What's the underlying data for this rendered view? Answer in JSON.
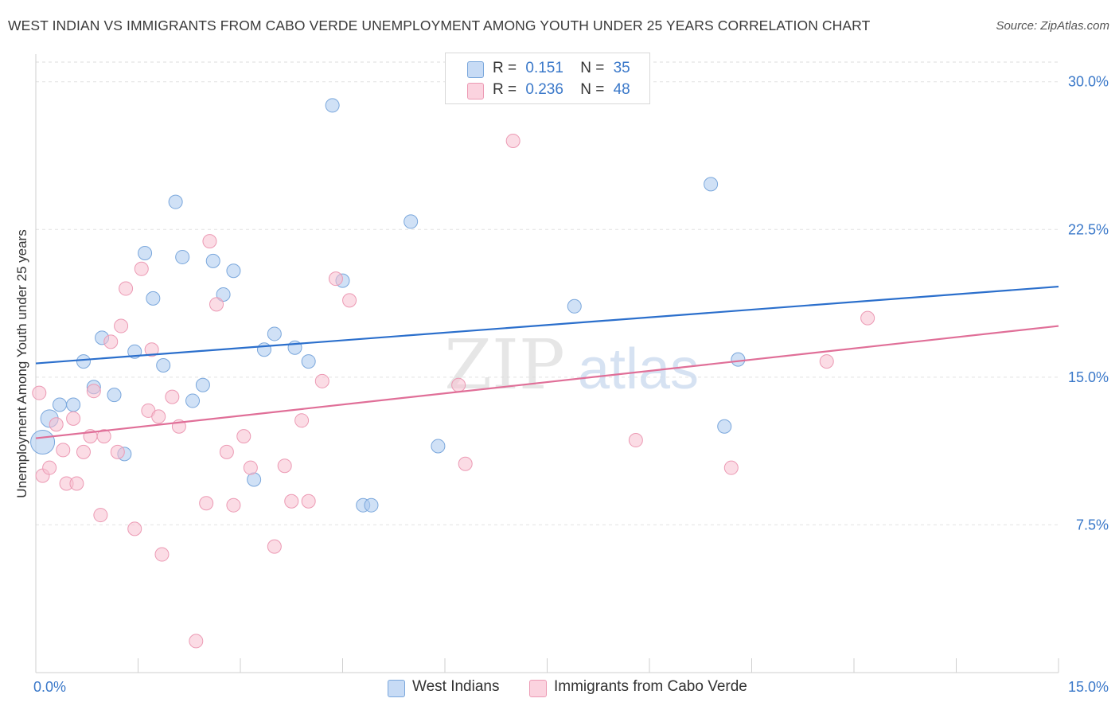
{
  "title": "WEST INDIAN VS IMMIGRANTS FROM CABO VERDE UNEMPLOYMENT AMONG YOUTH UNDER 25 YEARS CORRELATION CHART",
  "source": "Source: ZipAtlas.com",
  "watermark": {
    "zip": "ZIP",
    "atlas": "atlas"
  },
  "legend_top": [
    {
      "r_label": "R =",
      "r_value": "0.151",
      "n_label": "N =",
      "n_value": "35"
    },
    {
      "r_label": "R =",
      "r_value": "0.236",
      "n_label": "N =",
      "n_value": "48"
    }
  ],
  "chart_data": {
    "type": "scatter",
    "title": "WEST INDIAN VS IMMIGRANTS FROM CABO VERDE UNEMPLOYMENT AMONG YOUTH UNDER 25 YEARS CORRELATION CHART",
    "xlabel": "",
    "ylabel": "Unemployment Among Youth under 25 years",
    "xlim": [
      0,
      15
    ],
    "ylim": [
      0,
      31
    ],
    "x_tick_labels": [
      "0.0%",
      "15.0%"
    ],
    "y_ticks": [
      7.5,
      15,
      22.5,
      30
    ],
    "y_tick_labels": [
      "7.5%",
      "15.0%",
      "22.5%",
      "30.0%"
    ],
    "grid": "horizontal dashed",
    "legend_position": "bottom",
    "series": [
      {
        "name": "West Indians",
        "color": "#a9c8ee",
        "stroke": "#7aa7dc",
        "trend_color": "#2b6fcc",
        "r": 0.151,
        "n": 35,
        "trend": {
          "x": [
            0,
            15
          ],
          "y": [
            15.7,
            19.6
          ]
        },
        "points": [
          [
            0.1,
            11.7
          ],
          [
            0.2,
            12.9
          ],
          [
            0.35,
            13.6
          ],
          [
            0.55,
            13.6
          ],
          [
            0.7,
            15.8
          ],
          [
            0.85,
            14.5
          ],
          [
            0.97,
            17.0
          ],
          [
            1.15,
            14.1
          ],
          [
            1.3,
            11.1
          ],
          [
            1.45,
            16.3
          ],
          [
            1.6,
            21.3
          ],
          [
            1.72,
            19.0
          ],
          [
            1.87,
            15.6
          ],
          [
            2.05,
            23.9
          ],
          [
            2.15,
            21.1
          ],
          [
            2.3,
            13.8
          ],
          [
            2.45,
            14.6
          ],
          [
            2.6,
            20.9
          ],
          [
            2.75,
            19.2
          ],
          [
            2.9,
            20.4
          ],
          [
            3.2,
            9.8
          ],
          [
            3.35,
            16.4
          ],
          [
            3.5,
            17.2
          ],
          [
            3.8,
            16.5
          ],
          [
            4.0,
            15.8
          ],
          [
            4.35,
            28.8
          ],
          [
            4.5,
            19.9
          ],
          [
            4.8,
            8.5
          ],
          [
            4.92,
            8.5
          ],
          [
            5.5,
            22.9
          ],
          [
            5.9,
            11.5
          ],
          [
            7.9,
            18.6
          ],
          [
            9.9,
            24.8
          ],
          [
            10.1,
            12.5
          ],
          [
            10.3,
            15.9
          ]
        ]
      },
      {
        "name": "Immigrants from Cabo Verde",
        "color": "#f7bfd0",
        "stroke": "#ec9ab4",
        "trend_color": "#e06f98",
        "r": 0.236,
        "n": 48,
        "trend": {
          "x": [
            0,
            15
          ],
          "y": [
            11.9,
            17.6
          ]
        },
        "points": [
          [
            0.05,
            14.2
          ],
          [
            0.1,
            10.0
          ],
          [
            0.2,
            10.4
          ],
          [
            0.3,
            12.6
          ],
          [
            0.4,
            11.3
          ],
          [
            0.45,
            9.6
          ],
          [
            0.55,
            12.9
          ],
          [
            0.6,
            9.6
          ],
          [
            0.7,
            11.2
          ],
          [
            0.8,
            12.0
          ],
          [
            0.85,
            14.3
          ],
          [
            0.95,
            8.0
          ],
          [
            1.0,
            12.0
          ],
          [
            1.1,
            16.8
          ],
          [
            1.2,
            11.2
          ],
          [
            1.25,
            17.6
          ],
          [
            1.32,
            19.5
          ],
          [
            1.45,
            7.3
          ],
          [
            1.55,
            20.5
          ],
          [
            1.65,
            13.3
          ],
          [
            1.7,
            16.4
          ],
          [
            1.8,
            13.0
          ],
          [
            1.85,
            6.0
          ],
          [
            2.0,
            14.0
          ],
          [
            2.1,
            12.5
          ],
          [
            2.35,
            1.6
          ],
          [
            2.5,
            8.6
          ],
          [
            2.55,
            21.9
          ],
          [
            2.65,
            18.7
          ],
          [
            2.8,
            11.2
          ],
          [
            2.9,
            8.5
          ],
          [
            3.05,
            12.0
          ],
          [
            3.15,
            10.4
          ],
          [
            3.5,
            6.4
          ],
          [
            3.65,
            10.5
          ],
          [
            3.75,
            8.7
          ],
          [
            3.9,
            12.8
          ],
          [
            4.0,
            8.7
          ],
          [
            4.2,
            14.8
          ],
          [
            4.4,
            20.0
          ],
          [
            4.6,
            18.9
          ],
          [
            6.2,
            14.6
          ],
          [
            6.3,
            10.6
          ],
          [
            7.0,
            27.0
          ],
          [
            8.8,
            11.8
          ],
          [
            10.2,
            10.4
          ],
          [
            11.6,
            15.8
          ],
          [
            12.2,
            18.0
          ]
        ]
      }
    ]
  }
}
